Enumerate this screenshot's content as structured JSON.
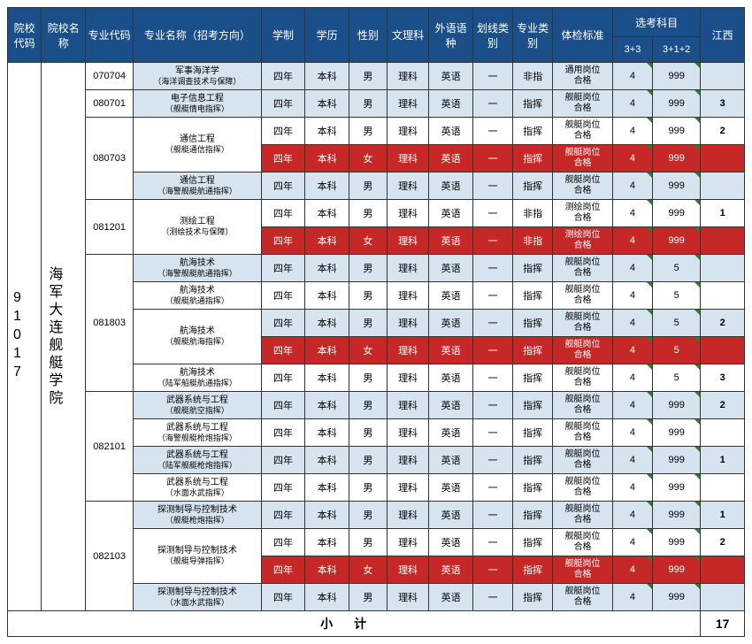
{
  "colors": {
    "header_bg": "#1b4f8a",
    "header_fg": "#ffffff",
    "blue_row_bg": "#d6e4f0",
    "red_row_bg": "#c62828",
    "red_row_fg": "#ffffff",
    "triangle": "#2e7d32",
    "border": "#333333"
  },
  "header": {
    "col_code": "院校代码",
    "col_name": "院校名称",
    "major_code": "专业代码",
    "major_name": "专业名称（招考方向）",
    "system": "学制",
    "degree": "学历",
    "gender": "性别",
    "artsci": "文理科",
    "lang": "外语语种",
    "linecat": "划线类别",
    "majcat": "专业类别",
    "physical": "体检标准",
    "xk_group": "选考科目",
    "xk33": "3+3",
    "xk312": "3+1+2",
    "prov": "江西"
  },
  "school": {
    "code": "91017",
    "name": "海军大连舰艇学院"
  },
  "subtotal_label": "小计",
  "subtotal_value": "17",
  "majors": [
    {
      "code": "070704",
      "codeRowspan": 1,
      "name": "军事海洋学",
      "sub": "（海洋调查技术与保障）",
      "sys": "四年",
      "deg": "本科",
      "gen": "男",
      "as": "理科",
      "lang": "英语",
      "line": "一",
      "cat": "非指",
      "phys": "通用岗位合格",
      "c33": "4",
      "c312": "999",
      "jx": "",
      "row": "blue"
    },
    {
      "code": "080701",
      "codeRowspan": 1,
      "name": "电子信息工程",
      "sub": "（舰艇情电指挥）",
      "sys": "四年",
      "deg": "本科",
      "gen": "男",
      "as": "理科",
      "lang": "英语",
      "line": "一",
      "cat": "指挥",
      "phys": "舰艇岗位合格",
      "c33": "4",
      "c312": "999",
      "jx": "3",
      "row": "blue"
    },
    {
      "code": "080703",
      "codeRowspan": 3,
      "name": "通信工程",
      "sub": "（舰艇通信指挥）",
      "sys": "四年",
      "deg": "本科",
      "gen": "男",
      "as": "理科",
      "lang": "英语",
      "line": "一",
      "cat": "指挥",
      "phys": "舰艇岗位合格",
      "c33": "4",
      "c312": "999",
      "jx": "2",
      "row": ""
    },
    {
      "name": "",
      "sub": "",
      "sys": "四年",
      "deg": "本科",
      "gen": "女",
      "as": "理科",
      "lang": "英语",
      "line": "一",
      "cat": "指挥",
      "phys": "舰艇岗位合格",
      "c33": "4",
      "c312": "999",
      "jx": "",
      "row": "red",
      "mergeUp": true
    },
    {
      "name": "通信工程",
      "sub": "（海警舰艇航通指挥）",
      "sys": "四年",
      "deg": "本科",
      "gen": "男",
      "as": "理科",
      "lang": "英语",
      "line": "一",
      "cat": "指挥",
      "phys": "舰艇岗位合格",
      "c33": "4",
      "c312": "999",
      "jx": "",
      "row": "blue"
    },
    {
      "code": "081201",
      "codeRowspan": 2,
      "name": "测绘工程",
      "sub": "（测绘技术与保障）",
      "sys": "四年",
      "deg": "本科",
      "gen": "男",
      "as": "理科",
      "lang": "英语",
      "line": "一",
      "cat": "非指",
      "phys": "测绘岗位合格",
      "c33": "4",
      "c312": "999",
      "jx": "1",
      "row": ""
    },
    {
      "name": "",
      "sub": "",
      "sys": "四年",
      "deg": "本科",
      "gen": "女",
      "as": "理科",
      "lang": "英语",
      "line": "一",
      "cat": "非指",
      "phys": "测绘岗位合格",
      "c33": "4",
      "c312": "999",
      "jx": "",
      "row": "red",
      "mergeUp": true
    },
    {
      "code": "081803",
      "codeRowspan": 5,
      "name": "航海技术",
      "sub": "（海警舰艇航通指挥）",
      "sys": "四年",
      "deg": "本科",
      "gen": "男",
      "as": "理科",
      "lang": "英语",
      "line": "一",
      "cat": "指挥",
      "phys": "舰艇岗位合格",
      "c33": "4",
      "c312": "5",
      "jx": "",
      "row": "blue"
    },
    {
      "name": "航海技术",
      "sub": "（舰艇航通指挥）",
      "sys": "四年",
      "deg": "本科",
      "gen": "男",
      "as": "理科",
      "lang": "英语",
      "line": "一",
      "cat": "指挥",
      "phys": "舰艇岗位合格",
      "c33": "4",
      "c312": "5",
      "jx": "",
      "row": ""
    },
    {
      "name": "航海技术",
      "sub": "（舰艇航海指挥）",
      "sys": "四年",
      "deg": "本科",
      "gen": "男",
      "as": "理科",
      "lang": "英语",
      "line": "一",
      "cat": "指挥",
      "phys": "舰艇岗位合格",
      "c33": "4",
      "c312": "5",
      "jx": "2",
      "row": "blue"
    },
    {
      "name": "",
      "sub": "",
      "sys": "四年",
      "deg": "本科",
      "gen": "女",
      "as": "理科",
      "lang": "英语",
      "line": "一",
      "cat": "指挥",
      "phys": "舰艇岗位合格",
      "c33": "4",
      "c312": "5",
      "jx": "",
      "row": "red",
      "mergeUp": true
    },
    {
      "name": "航海技术",
      "sub": "（陆军船艇航通指挥）",
      "sys": "四年",
      "deg": "本科",
      "gen": "男",
      "as": "理科",
      "lang": "英语",
      "line": "一",
      "cat": "指挥",
      "phys": "舰艇岗位合格",
      "c33": "4",
      "c312": "5",
      "jx": "3",
      "row": ""
    },
    {
      "code": "082101",
      "codeRowspan": 4,
      "name": "武器系统与工程",
      "sub": "（舰艇航空指挥）",
      "sys": "四年",
      "deg": "本科",
      "gen": "男",
      "as": "理科",
      "lang": "英语",
      "line": "一",
      "cat": "指挥",
      "phys": "舰艇岗位合格",
      "c33": "4",
      "c312": "999",
      "jx": "2",
      "row": "blue"
    },
    {
      "name": "武器系统与工程",
      "sub": "（海警舰艇枪炮指挥）",
      "sys": "四年",
      "deg": "本科",
      "gen": "男",
      "as": "理科",
      "lang": "英语",
      "line": "一",
      "cat": "指挥",
      "phys": "舰艇岗位合格",
      "c33": "4",
      "c312": "999",
      "jx": "",
      "row": ""
    },
    {
      "name": "武器系统与工程",
      "sub": "（陆军舰艇枪炮指挥）",
      "sys": "四年",
      "deg": "本科",
      "gen": "男",
      "as": "理科",
      "lang": "英语",
      "line": "一",
      "cat": "指挥",
      "phys": "舰艇岗位合格",
      "c33": "4",
      "c312": "999",
      "jx": "1",
      "row": "blue"
    },
    {
      "name": "武器系统与工程",
      "sub": "（水面水武指挥）",
      "sys": "四年",
      "deg": "本科",
      "gen": "男",
      "as": "理科",
      "lang": "英语",
      "line": "一",
      "cat": "指挥",
      "phys": "舰艇岗位合格",
      "c33": "4",
      "c312": "999",
      "jx": "",
      "row": ""
    },
    {
      "code": "082103",
      "codeRowspan": 4,
      "name": "探测制导与控制技术",
      "sub": "（舰艇枪炮指挥）",
      "sys": "四年",
      "deg": "本科",
      "gen": "男",
      "as": "理科",
      "lang": "英语",
      "line": "一",
      "cat": "指挥",
      "phys": "舰艇岗位合格",
      "c33": "4",
      "c312": "999",
      "jx": "1",
      "row": "blue"
    },
    {
      "name": "探测制导与控制技术",
      "sub": "（舰艇导弹指挥）",
      "sys": "四年",
      "deg": "本科",
      "gen": "男",
      "as": "理科",
      "lang": "英语",
      "line": "一",
      "cat": "指挥",
      "phys": "舰艇岗位合格",
      "c33": "4",
      "c312": "999",
      "jx": "2",
      "row": ""
    },
    {
      "name": "",
      "sub": "",
      "sys": "四年",
      "deg": "本科",
      "gen": "女",
      "as": "理科",
      "lang": "英语",
      "line": "一",
      "cat": "指挥",
      "phys": "舰艇岗位合格",
      "c33": "4",
      "c312": "999",
      "jx": "",
      "row": "red",
      "mergeUp": true
    },
    {
      "name": "探测制导与控制技术",
      "sub": "（水面水武指挥）",
      "sys": "四年",
      "deg": "本科",
      "gen": "男",
      "as": "理科",
      "lang": "英语",
      "line": "一",
      "cat": "指挥",
      "phys": "舰艇岗位合格",
      "c33": "4",
      "c312": "999",
      "jx": "",
      "row": "blue"
    }
  ]
}
